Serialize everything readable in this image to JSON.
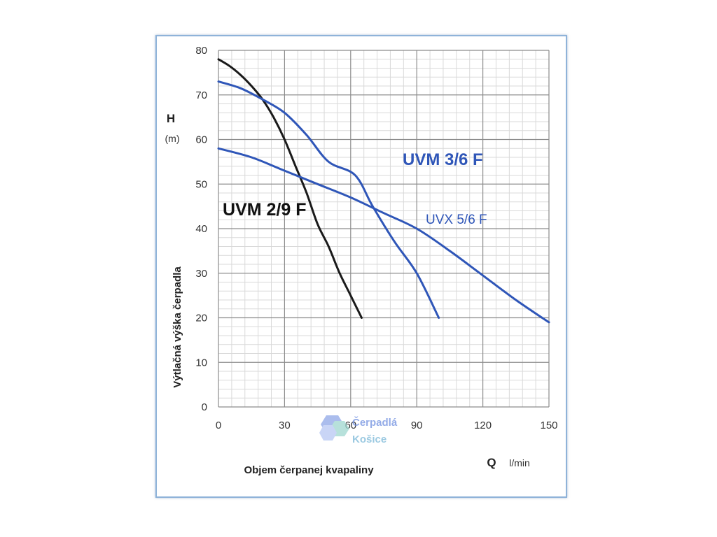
{
  "chart_data": {
    "type": "line",
    "ylabel_short": "H",
    "ylabel_unit": "(m)",
    "ylabel": "Výtlačná výška čerpadla",
    "xlabel": "Objem čerpanej kvapaliny",
    "xlabel_short": "Q",
    "xlabel_unit": "l/min",
    "xlim": [
      0,
      150
    ],
    "ylim": [
      0,
      80
    ],
    "xticks": [
      "0",
      "30",
      "60",
      "90",
      "120",
      "150"
    ],
    "yticks": [
      "0",
      "10",
      "20",
      "30",
      "40",
      "50",
      "60",
      "70",
      "80"
    ],
    "grid": true,
    "series": [
      {
        "name": "UVM 2/9 F",
        "color": "#1a1a1a",
        "label_color": "#111111",
        "points": [
          [
            0,
            78
          ],
          [
            5,
            76.5
          ],
          [
            10,
            74.5
          ],
          [
            15,
            72
          ],
          [
            20,
            69
          ],
          [
            25,
            65
          ],
          [
            30,
            60
          ],
          [
            35,
            54
          ],
          [
            40,
            48
          ],
          [
            45,
            41
          ],
          [
            50,
            36
          ],
          [
            55,
            30
          ],
          [
            60,
            25
          ],
          [
            65,
            20
          ]
        ]
      },
      {
        "name": "UVM 3/6 F",
        "color": "#2f56b8",
        "label_color": "#2f56b8",
        "points": [
          [
            0,
            73
          ],
          [
            10,
            71.5
          ],
          [
            20,
            69
          ],
          [
            30,
            66
          ],
          [
            40,
            61
          ],
          [
            50,
            55
          ],
          [
            62,
            52
          ],
          [
            70,
            45
          ],
          [
            80,
            37
          ],
          [
            90,
            30
          ],
          [
            100,
            20
          ]
        ]
      },
      {
        "name": "UVX 5/6 F",
        "color": "#2f56b8",
        "label_color": "#2f56b8",
        "points": [
          [
            0,
            58
          ],
          [
            15,
            56
          ],
          [
            30,
            53
          ],
          [
            45,
            50
          ],
          [
            60,
            47
          ],
          [
            75,
            43.5
          ],
          [
            90,
            40
          ],
          [
            105,
            35
          ],
          [
            120,
            29.5
          ],
          [
            135,
            24
          ],
          [
            150,
            19
          ]
        ]
      }
    ]
  },
  "watermark": {
    "line1": "Čerpadlá",
    "line2": "Košice"
  }
}
